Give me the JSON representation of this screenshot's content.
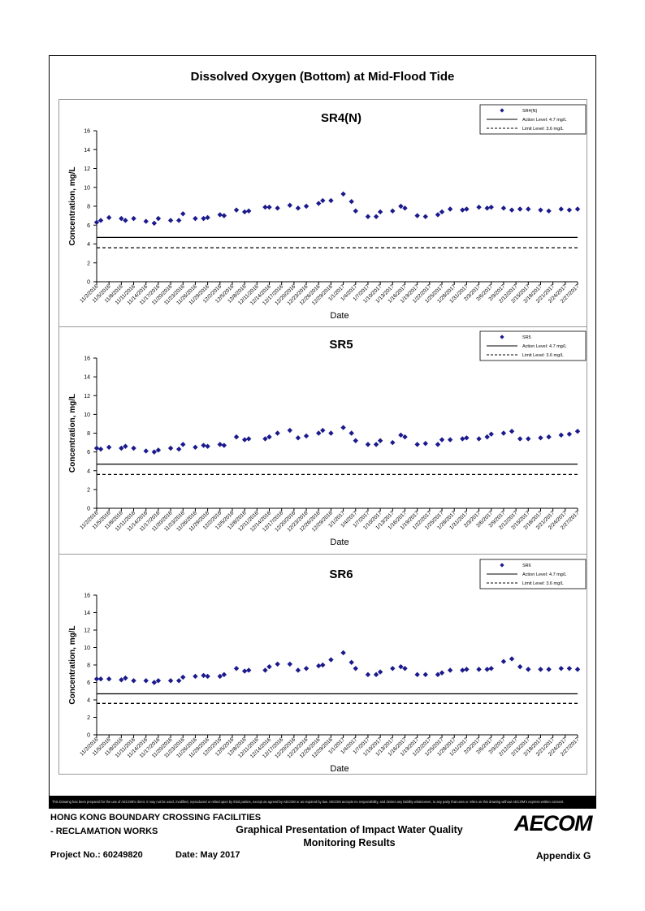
{
  "page_title": "Dissolved Oxygen (Bottom) at Mid-Flood Tide",
  "disclaimer": "This Drawing has been prepared for the use of AECOM's client. It may not be used, modified, reproduced or relied upon by third parties, except as agreed by AECOM or as required by law. AECOM accepts no responsibility, and denies any liability whatsoever, to any party that uses or relies on this drawing without AECOM's express written consent.",
  "footer": {
    "project_line1": "HONG KONG BOUNDARY CROSSING FACILITIES",
    "project_line2": "- RECLAMATION WORKS",
    "drawing_title_line1": "Graphical Presentation of Impact Water Quality",
    "drawing_title_line2": "Monitoring Results",
    "project_no": "Project No.: 60249820",
    "date": "Date: May 2017",
    "appendix": "Appendix G",
    "logo": "AECOM"
  },
  "chart_data": [
    {
      "type": "scatter",
      "title": "SR4(N)",
      "xlabel": "Date",
      "ylabel": "Concentration, mg/L",
      "ylim": [
        0,
        16
      ],
      "yticks": [
        0,
        2,
        4,
        6,
        8,
        10,
        12,
        14,
        16
      ],
      "grid": false,
      "legend_position": "top-right",
      "x_tick_labels": [
        "11/2/2016",
        "11/5/2016",
        "11/8/2016",
        "11/11/2016",
        "11/14/2016",
        "11/17/2016",
        "11/20/2016",
        "11/23/2016",
        "11/26/2016",
        "11/29/2016",
        "12/2/2016",
        "12/5/2016",
        "12/8/2016",
        "12/11/2016",
        "12/14/2016",
        "12/17/2016",
        "12/20/2016",
        "12/23/2016",
        "12/26/2016",
        "12/29/2016",
        "1/1/2017",
        "1/4/2017",
        "1/7/2017",
        "1/10/2017",
        "1/13/2017",
        "1/16/2017",
        "1/19/2017",
        "1/22/2017",
        "1/25/2017",
        "1/28/2017",
        "1/31/2017",
        "2/3/2017",
        "2/6/2017",
        "2/9/2017",
        "2/12/2017",
        "2/15/2017",
        "2/18/2017",
        "2/21/2017",
        "2/24/2017",
        "2/27/2017"
      ],
      "series": [
        {
          "name": "SR4(N)",
          "marker": "diamond",
          "color": "#1a1a8c",
          "x": [
            "11/2/2016",
            "11/3/2016",
            "11/5/2016",
            "11/8/2016",
            "11/9/2016",
            "11/11/2016",
            "11/14/2016",
            "11/16/2016",
            "11/17/2016",
            "11/20/2016",
            "11/22/2016",
            "11/23/2016",
            "11/26/2016",
            "11/28/2016",
            "11/29/2016",
            "12/2/2016",
            "12/3/2016",
            "12/6/2016",
            "12/8/2016",
            "12/9/2016",
            "12/13/2016",
            "12/14/2016",
            "12/16/2016",
            "12/19/2016",
            "12/21/2016",
            "12/23/2016",
            "12/26/2016",
            "12/27/2016",
            "12/29/2016",
            "1/1/2017",
            "1/3/2017",
            "1/4/2017",
            "1/7/2017",
            "1/9/2017",
            "1/10/2017",
            "1/13/2017",
            "1/15/2017",
            "1/16/2017",
            "1/19/2017",
            "1/21/2017",
            "1/24/2017",
            "1/25/2017",
            "1/27/2017",
            "1/30/2017",
            "1/31/2017",
            "2/3/2017",
            "2/5/2017",
            "2/6/2017",
            "2/9/2017",
            "2/11/2017",
            "2/13/2017",
            "2/15/2017",
            "2/18/2017",
            "2/20/2017",
            "2/23/2017",
            "2/25/2017",
            "2/27/2017"
          ],
          "y": [
            6.3,
            6.5,
            6.8,
            6.7,
            6.5,
            6.7,
            6.4,
            6.2,
            6.7,
            6.5,
            6.5,
            7.2,
            6.7,
            6.7,
            6.8,
            7.1,
            7.0,
            7.6,
            7.4,
            7.5,
            7.9,
            7.9,
            7.8,
            8.1,
            7.8,
            8.0,
            8.3,
            8.6,
            8.6,
            9.3,
            8.5,
            7.5,
            6.9,
            6.9,
            7.4,
            7.5,
            8.0,
            7.8,
            7.0,
            6.9,
            7.1,
            7.4,
            7.7,
            7.6,
            7.7,
            7.9,
            7.8,
            7.9,
            7.8,
            7.6,
            7.7,
            7.7,
            7.6,
            7.5,
            7.7,
            7.6,
            7.7
          ]
        },
        {
          "name": "Action Level: 4.7 mg/L",
          "kind": "hline",
          "value": 4.7,
          "style": "solid"
        },
        {
          "name": "Limit Level: 3.6 mg/L",
          "kind": "hline",
          "value": 3.6,
          "style": "dashed"
        }
      ]
    },
    {
      "type": "scatter",
      "title": "SR5",
      "xlabel": "Date",
      "ylabel": "Concentration, mg/L",
      "ylim": [
        0,
        16
      ],
      "yticks": [
        0,
        2,
        4,
        6,
        8,
        10,
        12,
        14,
        16
      ],
      "grid": false,
      "legend_position": "top-right",
      "x_tick_labels": [
        "11/2/2016",
        "11/5/2016",
        "11/8/2016",
        "11/11/2016",
        "11/14/2016",
        "11/17/2016",
        "11/20/2016",
        "11/23/2016",
        "11/26/2016",
        "11/29/2016",
        "12/2/2016",
        "12/5/2016",
        "12/8/2016",
        "12/11/2016",
        "12/14/2016",
        "12/17/2016",
        "12/20/2016",
        "12/23/2016",
        "12/26/2016",
        "12/29/2016",
        "1/1/2017",
        "1/4/2017",
        "1/7/2017",
        "1/10/2017",
        "1/13/2017",
        "1/16/2017",
        "1/19/2017",
        "1/22/2017",
        "1/25/2017",
        "1/28/2017",
        "1/31/2017",
        "2/3/2017",
        "2/6/2017",
        "2/9/2017",
        "2/12/2017",
        "2/15/2017",
        "2/18/2017",
        "2/21/2017",
        "2/24/2017",
        "2/27/2017"
      ],
      "series": [
        {
          "name": "SR5",
          "marker": "diamond",
          "color": "#1a1a8c",
          "x": [
            "11/2/2016",
            "11/3/2016",
            "11/5/2016",
            "11/8/2016",
            "11/9/2016",
            "11/11/2016",
            "11/14/2016",
            "11/16/2016",
            "11/17/2016",
            "11/20/2016",
            "11/22/2016",
            "11/23/2016",
            "11/26/2016",
            "11/28/2016",
            "11/29/2016",
            "12/2/2016",
            "12/3/2016",
            "12/6/2016",
            "12/8/2016",
            "12/9/2016",
            "12/13/2016",
            "12/14/2016",
            "12/16/2016",
            "12/19/2016",
            "12/21/2016",
            "12/23/2016",
            "12/26/2016",
            "12/27/2016",
            "12/29/2016",
            "1/1/2017",
            "1/3/2017",
            "1/4/2017",
            "1/7/2017",
            "1/9/2017",
            "1/10/2017",
            "1/13/2017",
            "1/15/2017",
            "1/16/2017",
            "1/19/2017",
            "1/21/2017",
            "1/24/2017",
            "1/25/2017",
            "1/27/2017",
            "1/30/2017",
            "1/31/2017",
            "2/3/2017",
            "2/5/2017",
            "2/6/2017",
            "2/9/2017",
            "2/11/2017",
            "2/13/2017",
            "2/15/2017",
            "2/18/2017",
            "2/20/2017",
            "2/23/2017",
            "2/25/2017",
            "2/27/2017"
          ],
          "y": [
            6.4,
            6.3,
            6.5,
            6.4,
            6.6,
            6.4,
            6.1,
            6.0,
            6.2,
            6.4,
            6.3,
            6.8,
            6.5,
            6.7,
            6.6,
            6.8,
            6.7,
            7.6,
            7.3,
            7.4,
            7.4,
            7.6,
            8.0,
            8.3,
            7.5,
            7.7,
            8.0,
            8.3,
            8.0,
            8.6,
            8.0,
            7.2,
            6.8,
            6.8,
            7.2,
            7.0,
            7.8,
            7.6,
            6.8,
            6.9,
            6.8,
            7.3,
            7.3,
            7.4,
            7.5,
            7.4,
            7.6,
            7.9,
            8.0,
            8.2,
            7.4,
            7.4,
            7.5,
            7.6,
            7.8,
            7.9,
            8.2
          ]
        },
        {
          "name": "Action Level: 4.7 mg/L",
          "kind": "hline",
          "value": 4.7,
          "style": "solid"
        },
        {
          "name": "Limit Level: 3.6 mg/L",
          "kind": "hline",
          "value": 3.6,
          "style": "dashed"
        }
      ]
    },
    {
      "type": "scatter",
      "title": "SR6",
      "xlabel": "Date",
      "ylabel": "Concentration, mg/L",
      "ylim": [
        0,
        16
      ],
      "yticks": [
        0,
        2,
        4,
        6,
        8,
        10,
        12,
        14,
        16
      ],
      "grid": false,
      "legend_position": "top-right",
      "x_tick_labels": [
        "11/2/2016",
        "11/5/2016",
        "11/8/2016",
        "11/11/2016",
        "11/14/2016",
        "11/17/2016",
        "11/20/2016",
        "11/23/2016",
        "11/26/2016",
        "11/29/2016",
        "12/2/2016",
        "12/5/2016",
        "12/8/2016",
        "12/11/2016",
        "12/14/2016",
        "12/17/2016",
        "12/20/2016",
        "12/23/2016",
        "12/26/2016",
        "12/29/2016",
        "1/1/2017",
        "1/4/2017",
        "1/7/2017",
        "1/10/2017",
        "1/13/2017",
        "1/16/2017",
        "1/19/2017",
        "1/22/2017",
        "1/25/2017",
        "1/28/2017",
        "1/31/2017",
        "2/3/2017",
        "2/6/2017",
        "2/9/2017",
        "2/12/2017",
        "2/15/2017",
        "2/18/2017",
        "2/21/2017",
        "2/24/2017",
        "2/27/2017"
      ],
      "series": [
        {
          "name": "SR6",
          "marker": "diamond",
          "color": "#1a1a8c",
          "x": [
            "11/2/2016",
            "11/3/2016",
            "11/5/2016",
            "11/8/2016",
            "11/9/2016",
            "11/11/2016",
            "11/14/2016",
            "11/16/2016",
            "11/17/2016",
            "11/20/2016",
            "11/22/2016",
            "11/23/2016",
            "11/26/2016",
            "11/28/2016",
            "11/29/2016",
            "12/2/2016",
            "12/3/2016",
            "12/6/2016",
            "12/8/2016",
            "12/9/2016",
            "12/13/2016",
            "12/14/2016",
            "12/16/2016",
            "12/19/2016",
            "12/21/2016",
            "12/23/2016",
            "12/26/2016",
            "12/27/2016",
            "12/29/2016",
            "1/1/2017",
            "1/3/2017",
            "1/4/2017",
            "1/7/2017",
            "1/9/2017",
            "1/10/2017",
            "1/13/2017",
            "1/15/2017",
            "1/16/2017",
            "1/19/2017",
            "1/21/2017",
            "1/24/2017",
            "1/25/2017",
            "1/27/2017",
            "1/30/2017",
            "1/31/2017",
            "2/3/2017",
            "2/5/2017",
            "2/6/2017",
            "2/9/2017",
            "2/11/2017",
            "2/13/2017",
            "2/15/2017",
            "2/18/2017",
            "2/20/2017",
            "2/23/2017",
            "2/25/2017",
            "2/27/2017"
          ],
          "y": [
            6.4,
            6.4,
            6.4,
            6.3,
            6.5,
            6.2,
            6.2,
            6.0,
            6.2,
            6.2,
            6.2,
            6.6,
            6.7,
            6.8,
            6.7,
            6.7,
            6.9,
            7.6,
            7.3,
            7.4,
            7.4,
            7.8,
            8.1,
            8.1,
            7.4,
            7.6,
            7.9,
            8.0,
            8.6,
            9.4,
            8.3,
            7.6,
            6.9,
            6.9,
            7.2,
            7.6,
            7.8,
            7.6,
            6.9,
            6.9,
            6.9,
            7.1,
            7.4,
            7.4,
            7.5,
            7.5,
            7.5,
            7.6,
            8.4,
            8.7,
            7.8,
            7.5,
            7.5,
            7.5,
            7.6,
            7.6,
            7.5
          ]
        },
        {
          "name": "Action Level: 4.7 mg/L",
          "kind": "hline",
          "value": 4.7,
          "style": "solid"
        },
        {
          "name": "Limit Level: 3.6 mg/L",
          "kind": "hline",
          "value": 3.6,
          "style": "dashed"
        }
      ]
    }
  ]
}
